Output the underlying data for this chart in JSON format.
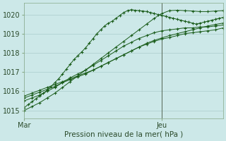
{
  "xlabel": "Pression niveau de la mer( hPa )",
  "bg_color": "#cce8e8",
  "grid_color": "#aacccc",
  "line_color": "#1a5c1a",
  "xtick_labels": [
    "Mar",
    "Jeu"
  ],
  "xtick_positions": [
    0,
    36
  ],
  "ylim": [
    1014.6,
    1020.6
  ],
  "xlim": [
    0,
    52
  ],
  "ylabel_ticks": [
    1015,
    1016,
    1017,
    1018,
    1019,
    1020
  ],
  "vline_x": 36,
  "series": [
    [
      0,
      1015.15,
      1,
      1015.3,
      2,
      1015.45,
      3,
      1015.6,
      4,
      1015.75,
      5,
      1015.9,
      6,
      1016.05,
      7,
      1016.25,
      8,
      1016.45,
      9,
      1016.65,
      10,
      1016.9,
      11,
      1017.15,
      12,
      1017.4,
      13,
      1017.65,
      14,
      1017.85,
      15,
      1018.05,
      16,
      1018.25,
      17,
      1018.5,
      18,
      1018.75,
      19,
      1019.0,
      20,
      1019.2,
      21,
      1019.4,
      22,
      1019.55,
      23,
      1019.65,
      24,
      1019.8,
      25,
      1019.95,
      26,
      1020.1,
      27,
      1020.2,
      28,
      1020.25,
      29,
      1020.22,
      30,
      1020.2,
      31,
      1020.18,
      32,
      1020.15,
      33,
      1020.1,
      34,
      1020.05,
      35,
      1020.0,
      36,
      1019.95,
      37,
      1019.9,
      38,
      1019.85,
      39,
      1019.8,
      40,
      1019.75,
      41,
      1019.7,
      42,
      1019.65,
      43,
      1019.6,
      44,
      1019.55,
      45,
      1019.5,
      46,
      1019.55,
      47,
      1019.6,
      48,
      1019.65,
      49,
      1019.7,
      50,
      1019.75,
      51,
      1019.8,
      52,
      1019.85
    ],
    [
      0,
      1015.5,
      2,
      1015.65,
      4,
      1015.8,
      6,
      1016.0,
      8,
      1016.2,
      10,
      1016.45,
      12,
      1016.7,
      14,
      1016.9,
      16,
      1017.1,
      18,
      1017.35,
      20,
      1017.6,
      22,
      1017.85,
      24,
      1018.1,
      26,
      1018.35,
      28,
      1018.55,
      30,
      1018.75,
      32,
      1018.9,
      34,
      1019.05,
      36,
      1019.15,
      38,
      1019.2,
      40,
      1019.25,
      42,
      1019.3,
      44,
      1019.3,
      46,
      1019.35,
      48,
      1019.35,
      50,
      1019.4,
      52,
      1019.45
    ],
    [
      0,
      1015.65,
      2,
      1015.8,
      4,
      1015.95,
      6,
      1016.1,
      8,
      1016.25,
      10,
      1016.45,
      12,
      1016.6,
      14,
      1016.75,
      16,
      1016.9,
      18,
      1017.1,
      20,
      1017.3,
      22,
      1017.5,
      24,
      1017.7,
      26,
      1017.9,
      28,
      1018.1,
      30,
      1018.3,
      32,
      1018.45,
      34,
      1018.6,
      36,
      1018.72,
      38,
      1018.8,
      40,
      1018.9,
      42,
      1019.0,
      44,
      1019.05,
      46,
      1019.1,
      48,
      1019.15,
      50,
      1019.2,
      52,
      1019.3
    ],
    [
      0,
      1015.75,
      2,
      1015.9,
      4,
      1016.05,
      6,
      1016.2,
      8,
      1016.35,
      10,
      1016.5,
      12,
      1016.65,
      14,
      1016.8,
      16,
      1016.95,
      18,
      1017.1,
      20,
      1017.3,
      22,
      1017.5,
      24,
      1017.7,
      26,
      1017.9,
      28,
      1018.1,
      30,
      1018.3,
      32,
      1018.5,
      34,
      1018.65,
      36,
      1018.78,
      38,
      1018.9,
      40,
      1019.0,
      42,
      1019.1,
      44,
      1019.2,
      46,
      1019.3,
      48,
      1019.4,
      50,
      1019.48,
      52,
      1019.55
    ],
    [
      0,
      1015.0,
      2,
      1015.2,
      4,
      1015.4,
      6,
      1015.65,
      8,
      1015.9,
      10,
      1016.2,
      12,
      1016.5,
      14,
      1016.8,
      16,
      1017.1,
      18,
      1017.4,
      20,
      1017.7,
      22,
      1018.0,
      24,
      1018.3,
      26,
      1018.6,
      28,
      1018.9,
      30,
      1019.2,
      32,
      1019.5,
      34,
      1019.8,
      36,
      1020.05,
      38,
      1020.2,
      40,
      1020.22,
      42,
      1020.2,
      44,
      1020.18,
      46,
      1020.15,
      48,
      1020.15,
      50,
      1020.18,
      52,
      1020.2
    ]
  ]
}
